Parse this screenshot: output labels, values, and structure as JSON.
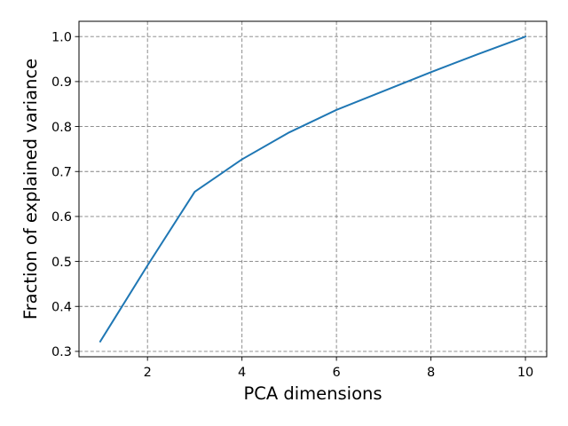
{
  "chart_data": {
    "type": "line",
    "title": "",
    "xlabel": "PCA dimensions",
    "ylabel": "Fraction of explained variance",
    "xlim": [
      0.55,
      10.45
    ],
    "ylim": [
      0.288,
      1.034
    ],
    "xticks": [
      2,
      4,
      6,
      8,
      10
    ],
    "yticks": [
      0.3,
      0.4,
      0.5,
      0.6,
      0.7,
      0.8,
      0.9,
      1.0
    ],
    "xtick_labels": [
      "2",
      "4",
      "6",
      "8",
      "10"
    ],
    "ytick_labels": [
      "0.3",
      "0.4",
      "0.5",
      "0.6",
      "0.7",
      "0.8",
      "0.9",
      "1.0"
    ],
    "grid": true,
    "series": [
      {
        "x": [
          1,
          2,
          3,
          4,
          5,
          6,
          7,
          8,
          9,
          10
        ],
        "values": [
          0.322,
          0.491,
          0.655,
          0.727,
          0.787,
          0.837,
          0.879,
          0.921,
          0.961,
          1.0
        ],
        "color": "#1f77b4"
      }
    ]
  }
}
